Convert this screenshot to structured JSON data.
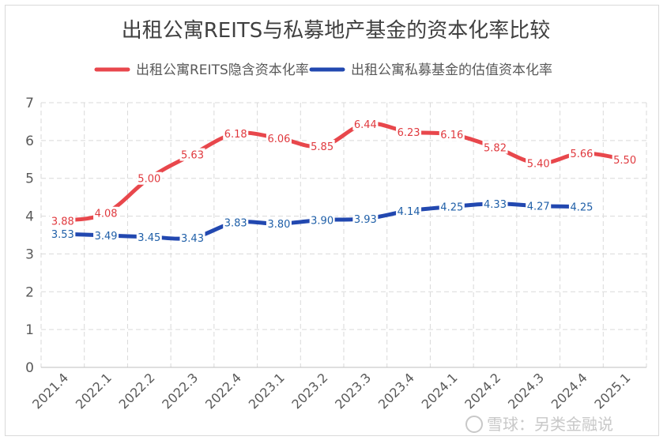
{
  "chart_data": {
    "type": "line",
    "title": "出租公寓REITS与私募地产基金的资本化率比较",
    "categories": [
      "2021.4",
      "2022.1",
      "2022.2",
      "2022.3",
      "2022.4",
      "2023.1",
      "2023.2",
      "2023.3",
      "2023.4",
      "2024.1",
      "2024.2",
      "2024.3",
      "2024.4",
      "2025.1"
    ],
    "series": [
      {
        "name": "出租公寓REITS隐含资本化率",
        "color": "#e8474c",
        "values": [
          3.88,
          4.08,
          5.0,
          5.63,
          6.18,
          6.06,
          5.85,
          6.44,
          6.23,
          6.16,
          5.82,
          5.4,
          5.66,
          5.5
        ]
      },
      {
        "name": "出租公寓私募基金的估值资本化率",
        "color": "#2248b0",
        "values": [
          3.53,
          3.49,
          3.45,
          3.43,
          3.83,
          3.8,
          3.9,
          3.93,
          4.14,
          4.25,
          4.33,
          4.27,
          4.25,
          null
        ]
      }
    ],
    "ylim": [
      0,
      7
    ],
    "yticks": [
      0,
      1,
      2,
      3,
      4,
      5,
      6,
      7
    ],
    "grid": true,
    "legend_position": "top"
  },
  "watermark": "雪球：另类金融说"
}
